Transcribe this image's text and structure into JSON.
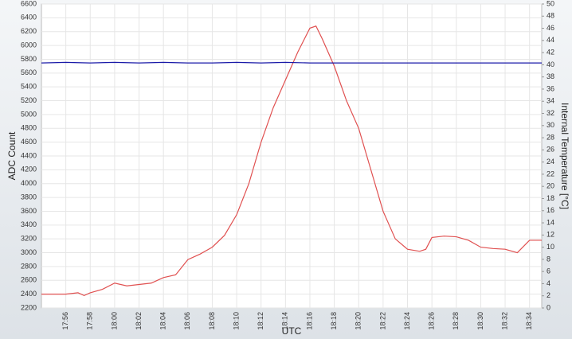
{
  "chart_data": {
    "type": "line",
    "xlabel": "UTC",
    "ylabel": "ADC Count",
    "y2label": "Internal Temperature [°C]",
    "xlim": [
      1074,
      1115
    ],
    "xticks": [
      {
        "value": 1076,
        "label": "17:56"
      },
      {
        "value": 1078,
        "label": "17:58"
      },
      {
        "value": 1080,
        "label": "18:00"
      },
      {
        "value": 1082,
        "label": "18:02"
      },
      {
        "value": 1084,
        "label": "18:04"
      },
      {
        "value": 1086,
        "label": "18:06"
      },
      {
        "value": 1088,
        "label": "18:08"
      },
      {
        "value": 1090,
        "label": "18:10"
      },
      {
        "value": 1092,
        "label": "18:12"
      },
      {
        "value": 1094,
        "label": "18:14"
      },
      {
        "value": 1096,
        "label": "18:16"
      },
      {
        "value": 1098,
        "label": "18:18"
      },
      {
        "value": 1100,
        "label": "18:20"
      },
      {
        "value": 1102,
        "label": "18:22"
      },
      {
        "value": 1104,
        "label": "18:24"
      },
      {
        "value": 1106,
        "label": "18:26"
      },
      {
        "value": 1108,
        "label": "18:28"
      },
      {
        "value": 1110,
        "label": "18:30"
      },
      {
        "value": 1112,
        "label": "18:32"
      },
      {
        "value": 1114,
        "label": "18:34"
      }
    ],
    "ylim": [
      2200,
      6600
    ],
    "yticks": [
      2200,
      2400,
      2600,
      2800,
      3000,
      3200,
      3400,
      3600,
      3800,
      4000,
      4200,
      4400,
      4600,
      4800,
      5000,
      5200,
      5400,
      5600,
      5800,
      6000,
      6200,
      6400,
      6600
    ],
    "y2lim": [
      0,
      50
    ],
    "y2ticks": [
      0,
      2,
      4,
      6,
      8,
      10,
      12,
      14,
      16,
      18,
      20,
      22,
      24,
      26,
      28,
      30,
      32,
      34,
      36,
      38,
      40,
      42,
      44,
      46,
      48,
      50
    ],
    "grid": true,
    "series": [
      {
        "color": "#e05050",
        "axis": "y",
        "x": [
          1074,
          1076,
          1077,
          1077.5,
          1078,
          1079,
          1080,
          1081,
          1082,
          1083,
          1084,
          1085,
          1086,
          1087,
          1088,
          1089,
          1090,
          1091,
          1092,
          1093,
          1094,
          1095,
          1096,
          1096.5,
          1097,
          1098,
          1099,
          1100,
          1101,
          1102,
          1103,
          1104,
          1105,
          1105.5,
          1106,
          1107,
          1108,
          1109,
          1110,
          1111,
          1112,
          1113,
          1114,
          1115
        ],
        "values": [
          2400,
          2400,
          2420,
          2380,
          2420,
          2470,
          2560,
          2520,
          2540,
          2560,
          2640,
          2680,
          2900,
          2980,
          3080,
          3250,
          3550,
          4000,
          4600,
          5100,
          5500,
          5900,
          6250,
          6280,
          6100,
          5700,
          5200,
          4800,
          4200,
          3600,
          3200,
          3050,
          3020,
          3050,
          3220,
          3240,
          3230,
          3180,
          3080,
          3060,
          3050,
          3000,
          3180,
          3180
        ]
      },
      {
        "color": "#1a1aa8",
        "axis": "y2",
        "x": [
          1074,
          1076,
          1078,
          1080,
          1082,
          1084,
          1086,
          1088,
          1090,
          1092,
          1094,
          1096,
          1098,
          1100,
          1102,
          1104,
          1106,
          1108,
          1110,
          1112,
          1114,
          1115
        ],
        "values": [
          40.3,
          40.4,
          40.3,
          40.4,
          40.3,
          40.4,
          40.3,
          40.3,
          40.4,
          40.3,
          40.4,
          40.3,
          40.3,
          40.3,
          40.3,
          40.3,
          40.3,
          40.3,
          40.3,
          40.3,
          40.3,
          40.3
        ]
      }
    ]
  }
}
